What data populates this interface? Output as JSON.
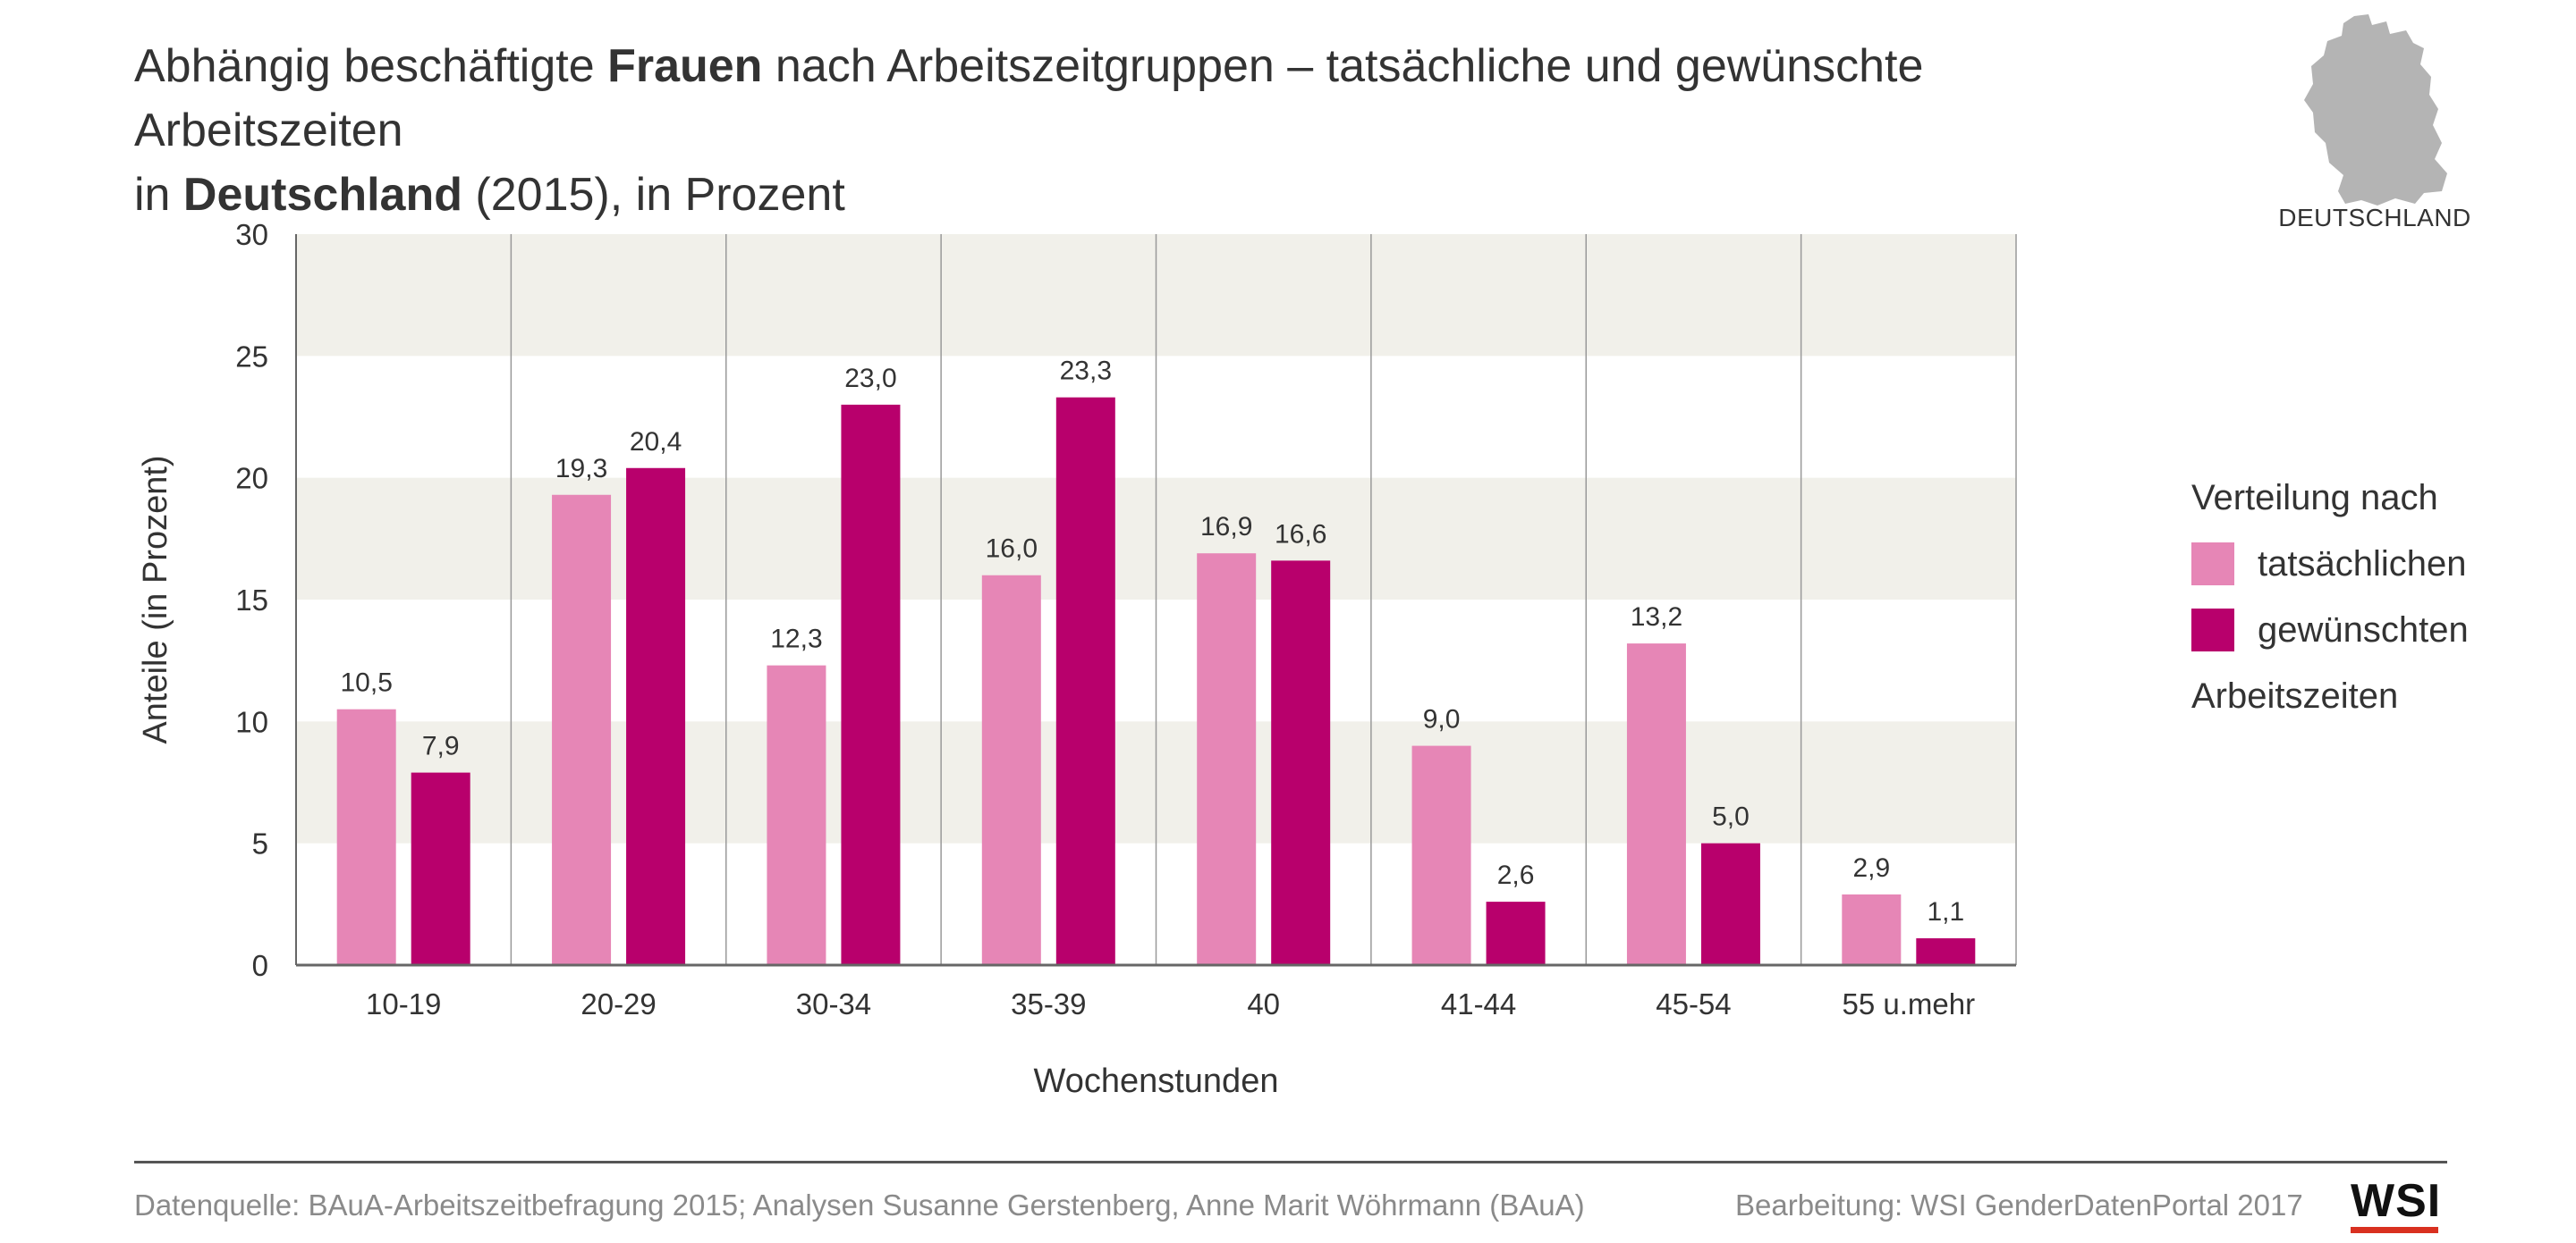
{
  "title": {
    "part1": "Abhängig beschäftigte ",
    "bold1": "Frauen",
    "part2": " nach Arbeitszeitgruppen – tatsächliche und gewünschte Arbeitszeiten",
    "part3": "in ",
    "bold2": "Deutschland",
    "part4": " (2015), in Prozent"
  },
  "map_label": "DEUTSCHLAND",
  "legend": {
    "heading": "Verteilung nach",
    "items": [
      "tatsächlichen",
      "gewünschten"
    ],
    "footer": "Arbeitszeiten"
  },
  "footer": {
    "source": "Datenquelle: BAuA-Arbeitszeitbefragung 2015; Analysen Susanne Gerstenberg, Anne Marit Wöhrmann (BAuA)",
    "credit": "Bearbeitung: WSI GenderDatenPortal 2017",
    "logo": "WSI"
  },
  "colors": {
    "tatsaechlich": "#e686b6",
    "gewuenscht": "#b8006c",
    "band": "#f1f0ea",
    "map": "#b4b4b4",
    "logo_bar": "#d93020"
  },
  "chart_data": {
    "type": "bar",
    "categories": [
      "10-19",
      "20-29",
      "30-34",
      "35-39",
      "40",
      "41-44",
      "45-54",
      "55 u.mehr"
    ],
    "series": [
      {
        "name": "tatsächlichen",
        "values": [
          10.5,
          19.3,
          12.3,
          16.0,
          16.9,
          9.0,
          13.2,
          2.9
        ],
        "labels": [
          "10,5",
          "19,3",
          "12,3",
          "16,0",
          "16,9",
          "9,0",
          "13,2",
          "2,9"
        ]
      },
      {
        "name": "gewünschten",
        "values": [
          7.9,
          20.4,
          23.0,
          23.3,
          16.6,
          2.6,
          5.0,
          1.1
        ],
        "labels": [
          "7,9",
          "20,4",
          "23,0",
          "23,3",
          "16,6",
          "2,6",
          "5,0",
          "1,1"
        ]
      }
    ],
    "xlabel": "Wochenstunden",
    "ylabel": "Anteile (in Prozent)",
    "ylim": [
      0,
      30
    ],
    "yticks": [
      0,
      5,
      10,
      15,
      20,
      25,
      30
    ],
    "grid": "alternating horizontal bands, vertical category separators",
    "legend_position": "right"
  }
}
